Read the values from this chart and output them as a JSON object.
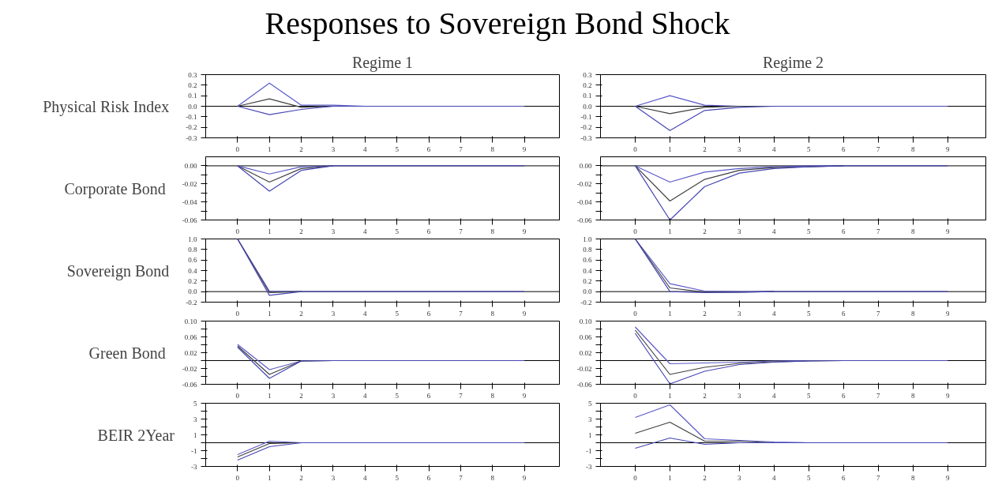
{
  "chart_data": [
    {
      "type": "line",
      "title": "Responses to Sovereign Bond Shock",
      "subtitle": "Regime 1",
      "ylabel": "Physical Risk Index",
      "x": [
        0,
        1,
        2,
        3,
        4,
        5,
        6,
        7,
        8,
        9
      ],
      "xlim": [
        -1,
        10.1
      ],
      "xticks": [
        0,
        1,
        2,
        3,
        4,
        5,
        6,
        7,
        8,
        9
      ],
      "ylim": [
        -0.3,
        0.3
      ],
      "yticks": [
        {
          "value": 0.3,
          "label": "0.3"
        },
        {
          "value": 0.2,
          "label": "0.2"
        },
        {
          "value": 0.1,
          "label": "0.1"
        },
        {
          "value": 0,
          "label": "0.0"
        },
        {
          "value": -0.1,
          "label": "-0.1"
        },
        {
          "value": -0.2,
          "label": "-0.2"
        },
        {
          "value": -0.3,
          "label": "-0.3"
        }
      ],
      "ref_lines": [
        {
          "axis": "y",
          "value": 0,
          "color": "#000000"
        }
      ],
      "series": [
        {
          "color": "#5a5ac8",
          "values": [
            0,
            0.22,
            0.01,
            0.01,
            0,
            null,
            null,
            null,
            null,
            null
          ]
        },
        {
          "color": "#404040",
          "values": [
            0,
            0.07,
            -0.01,
            0,
            null,
            null,
            null,
            null,
            null,
            null
          ]
        },
        {
          "color": "#4646b4",
          "values": [
            0,
            -0.08,
            -0.03,
            0,
            0,
            0,
            0,
            0,
            0,
            0
          ]
        }
      ]
    },
    {
      "type": "line",
      "subtitle": "Regime 2",
      "x": [
        0,
        1,
        2,
        3,
        4,
        5,
        6,
        7,
        8,
        9
      ],
      "xlim": [
        -1,
        10.1
      ],
      "xticks": [
        0,
        1,
        2,
        3,
        4,
        5,
        6,
        7,
        8,
        9
      ],
      "ylim": [
        -0.3,
        0.3
      ],
      "yticks": [
        {
          "value": 0.3,
          "label": "0.3"
        },
        {
          "value": 0.2,
          "label": "0.2"
        },
        {
          "value": 0.1,
          "label": "0.1"
        },
        {
          "value": 0,
          "label": "0.0"
        },
        {
          "value": -0.1,
          "label": "-0.1"
        },
        {
          "value": -0.2,
          "label": "-0.2"
        },
        {
          "value": -0.3,
          "label": "-0.3"
        }
      ],
      "ref_lines": [
        {
          "axis": "y",
          "value": 0,
          "color": "#000000"
        }
      ],
      "series": [
        {
          "color": "#5a5ac8",
          "values": [
            0,
            0.1,
            0.01,
            0,
            0,
            null,
            null,
            null,
            null,
            null
          ]
        },
        {
          "color": "#404040",
          "values": [
            0,
            -0.07,
            -0.01,
            0,
            0,
            null,
            null,
            null,
            null,
            null
          ]
        },
        {
          "color": "#4646b4",
          "values": [
            0,
            -0.23,
            -0.04,
            -0.01,
            0,
            0,
            0,
            0,
            0,
            0
          ]
        }
      ]
    },
    {
      "type": "line",
      "ylabel": "Corporate Bond",
      "x": [
        0,
        1,
        2,
        3,
        4,
        5,
        6,
        7,
        8,
        9
      ],
      "xlim": [
        -1,
        10.1
      ],
      "xticks": [
        0,
        1,
        2,
        3,
        4,
        5,
        6,
        7,
        8,
        9
      ],
      "ylim": [
        -0.06,
        0.01
      ],
      "yticks": [
        {
          "value": 0,
          "label": "0.00"
        },
        {
          "value": -0.01,
          "label": null
        },
        {
          "value": -0.02,
          "label": "-0.02"
        },
        {
          "value": -0.03,
          "label": null
        },
        {
          "value": -0.04,
          "label": "-0.04"
        },
        {
          "value": -0.05,
          "label": null
        },
        {
          "value": -0.06,
          "label": "-0.06"
        }
      ],
      "ref_lines": [
        {
          "axis": "y",
          "value": 0,
          "color": "#000000"
        }
      ],
      "series": [
        {
          "color": "#5a5ac8",
          "values": [
            0,
            -0.009,
            -0.001,
            0,
            null,
            null,
            null,
            null,
            null,
            null
          ]
        },
        {
          "color": "#404040",
          "values": [
            0,
            -0.018,
            -0.003,
            0,
            null,
            null,
            null,
            null,
            null,
            null
          ]
        },
        {
          "color": "#4646b4",
          "values": [
            0,
            -0.028,
            -0.005,
            0,
            0,
            0,
            0,
            0,
            0,
            0
          ]
        }
      ]
    },
    {
      "type": "line",
      "x": [
        0,
        1,
        2,
        3,
        4,
        5,
        6,
        7,
        8,
        9
      ],
      "xlim": [
        -1,
        10.1
      ],
      "xticks": [
        0,
        1,
        2,
        3,
        4,
        5,
        6,
        7,
        8,
        9
      ],
      "ylim": [
        -0.06,
        0.01
      ],
      "yticks": [
        {
          "value": 0,
          "label": "0.00"
        },
        {
          "value": -0.01,
          "label": null
        },
        {
          "value": -0.02,
          "label": "-0.02"
        },
        {
          "value": -0.03,
          "label": null
        },
        {
          "value": -0.04,
          "label": "-0.04"
        },
        {
          "value": -0.05,
          "label": null
        },
        {
          "value": -0.06,
          "label": "-0.06"
        }
      ],
      "ref_lines": [
        {
          "axis": "y",
          "value": 0,
          "color": "#000000"
        }
      ],
      "series": [
        {
          "color": "#5a5ac8",
          "values": [
            0,
            -0.018,
            -0.007,
            -0.003,
            -0.001,
            0,
            0,
            null,
            null,
            null
          ]
        },
        {
          "color": "#404040",
          "values": [
            0,
            -0.039,
            -0.015,
            -0.005,
            -0.002,
            -0.001,
            0,
            null,
            null,
            null
          ]
        },
        {
          "color": "#4646b4",
          "values": [
            0,
            -0.06,
            -0.023,
            -0.008,
            -0.003,
            -0.001,
            0,
            0,
            0,
            0
          ]
        }
      ]
    },
    {
      "type": "line",
      "ylabel": "Sovereign Bond",
      "x": [
        0,
        1,
        2,
        3,
        4,
        5,
        6,
        7,
        8,
        9
      ],
      "xlim": [
        -1,
        10.1
      ],
      "xticks": [
        0,
        1,
        2,
        3,
        4,
        5,
        6,
        7,
        8,
        9
      ],
      "ylim": [
        -0.2,
        1.0
      ],
      "yticks": [
        {
          "value": 1.0,
          "label": "1.0"
        },
        {
          "value": 0.8,
          "label": "0.8"
        },
        {
          "value": 0.6,
          "label": "0.6"
        },
        {
          "value": 0.4,
          "label": "0.4"
        },
        {
          "value": 0.2,
          "label": "0.2"
        },
        {
          "value": 0,
          "label": "0.0"
        },
        {
          "value": -0.2,
          "label": "-0.2"
        }
      ],
      "ref_lines": [
        {
          "axis": "y",
          "value": 0,
          "color": "#000000"
        }
      ],
      "series": [
        {
          "color": "#5a5ac8",
          "values": [
            1.0,
            0.01,
            0,
            null,
            null,
            null,
            null,
            null,
            null,
            null
          ]
        },
        {
          "color": "#404040",
          "values": [
            1.0,
            -0.02,
            0,
            null,
            null,
            null,
            null,
            null,
            null,
            null
          ]
        },
        {
          "color": "#4646b4",
          "values": [
            1.0,
            -0.07,
            0,
            0,
            0,
            0,
            0,
            0,
            0,
            0
          ]
        }
      ]
    },
    {
      "type": "line",
      "x": [
        0,
        1,
        2,
        3,
        4,
        5,
        6,
        7,
        8,
        9
      ],
      "xlim": [
        -1,
        10.1
      ],
      "xticks": [
        0,
        1,
        2,
        3,
        4,
        5,
        6,
        7,
        8,
        9
      ],
      "ylim": [
        -0.2,
        1.0
      ],
      "yticks": [
        {
          "value": 1.0,
          "label": "1.0"
        },
        {
          "value": 0.8,
          "label": "0.8"
        },
        {
          "value": 0.6,
          "label": "0.6"
        },
        {
          "value": 0.4,
          "label": "0.4"
        },
        {
          "value": 0.2,
          "label": "0.2"
        },
        {
          "value": 0,
          "label": "0.0"
        },
        {
          "value": -0.2,
          "label": "-0.2"
        }
      ],
      "ref_lines": [
        {
          "axis": "y",
          "value": 0,
          "color": "#000000"
        }
      ],
      "series": [
        {
          "color": "#5a5ac8",
          "values": [
            1.0,
            0.15,
            0.01,
            0,
            0,
            null,
            null,
            null,
            null,
            null
          ]
        },
        {
          "color": "#404040",
          "values": [
            1.0,
            0.07,
            -0.01,
            -0.01,
            0,
            null,
            null,
            null,
            null,
            null
          ]
        },
        {
          "color": "#4646b4",
          "values": [
            1.0,
            0,
            -0.02,
            -0.01,
            0,
            0,
            0,
            0,
            0,
            0
          ]
        }
      ]
    },
    {
      "type": "line",
      "ylabel": "Green Bond",
      "x": [
        0,
        1,
        2,
        3,
        4,
        5,
        6,
        7,
        8,
        9
      ],
      "xlim": [
        -1,
        10.1
      ],
      "xticks": [
        0,
        1,
        2,
        3,
        4,
        5,
        6,
        7,
        8,
        9
      ],
      "ylim": [
        -0.06,
        0.1
      ],
      "yticks": [
        {
          "value": 0.1,
          "label": "0.10"
        },
        {
          "value": 0.08,
          "label": null
        },
        {
          "value": 0.06,
          "label": "0.06"
        },
        {
          "value": 0.04,
          "label": null
        },
        {
          "value": 0.02,
          "label": "0.02"
        },
        {
          "value": 0,
          "label": null
        },
        {
          "value": -0.02,
          "label": "-0.02"
        },
        {
          "value": -0.04,
          "label": null
        },
        {
          "value": -0.06,
          "label": "-0.06"
        }
      ],
      "ref_lines": [
        {
          "axis": "y",
          "value": 0,
          "color": "#000000"
        }
      ],
      "series": [
        {
          "color": "#5a5ac8",
          "values": [
            0.041,
            -0.023,
            -0.001,
            0,
            null,
            null,
            null,
            null,
            null,
            null
          ]
        },
        {
          "color": "#404040",
          "values": [
            0.037,
            -0.035,
            -0.001,
            0,
            null,
            null,
            null,
            null,
            null,
            null
          ]
        },
        {
          "color": "#4646b4",
          "values": [
            0.034,
            -0.045,
            -0.001,
            0,
            0,
            0,
            0,
            0,
            0,
            0
          ]
        }
      ]
    },
    {
      "type": "line",
      "x": [
        0,
        1,
        2,
        3,
        4,
        5,
        6,
        7,
        8,
        9
      ],
      "xlim": [
        -1,
        10.1
      ],
      "xticks": [
        0,
        1,
        2,
        3,
        4,
        5,
        6,
        7,
        8,
        9
      ],
      "ylim": [
        -0.06,
        0.1
      ],
      "yticks": [
        {
          "value": 0.1,
          "label": "0.10"
        },
        {
          "value": 0.08,
          "label": null
        },
        {
          "value": 0.06,
          "label": "0.06"
        },
        {
          "value": 0.04,
          "label": null
        },
        {
          "value": 0.02,
          "label": "0.02"
        },
        {
          "value": 0,
          "label": null
        },
        {
          "value": -0.02,
          "label": "-0.02"
        },
        {
          "value": -0.04,
          "label": null
        },
        {
          "value": -0.06,
          "label": "-0.06"
        }
      ],
      "ref_lines": [
        {
          "axis": "y",
          "value": 0,
          "color": "#000000"
        }
      ],
      "series": [
        {
          "color": "#5a5ac8",
          "values": [
            0.085,
            -0.008,
            -0.006,
            -0.004,
            -0.001,
            0,
            0,
            null,
            null,
            null
          ]
        },
        {
          "color": "#404040",
          "values": [
            0.077,
            -0.035,
            -0.017,
            -0.007,
            -0.003,
            -0.001,
            0,
            null,
            null,
            null
          ]
        },
        {
          "color": "#4646b4",
          "values": [
            0.069,
            -0.059,
            -0.027,
            -0.01,
            -0.004,
            -0.001,
            0,
            0,
            0,
            0
          ]
        }
      ]
    },
    {
      "type": "line",
      "ylabel": "BEIR 2Year",
      "x": [
        0,
        1,
        2,
        3,
        4,
        5,
        6,
        7,
        8,
        9
      ],
      "xlim": [
        -1,
        10.1
      ],
      "xticks": [
        0,
        1,
        2,
        3,
        4,
        5,
        6,
        7,
        8,
        9
      ],
      "ylim": [
        -3,
        5
      ],
      "yticks": [
        5,
        {
          "value": 4,
          "label": null
        },
        3,
        {
          "value": 2,
          "label": null
        },
        1,
        {
          "value": 0,
          "label": null
        },
        -1,
        {
          "value": -2,
          "label": null
        },
        -3
      ],
      "ref_lines": [
        {
          "axis": "y",
          "value": 0,
          "color": "#000000"
        }
      ],
      "series": [
        {
          "color": "#5a5ac8",
          "values": [
            -1.5,
            0.2,
            0,
            null,
            null,
            null,
            null,
            null,
            null,
            null
          ]
        },
        {
          "color": "#404040",
          "values": [
            -1.8,
            -0.1,
            0,
            null,
            null,
            null,
            null,
            null,
            null,
            null
          ]
        },
        {
          "color": "#4646b4",
          "values": [
            -2.2,
            -0.5,
            0,
            0,
            0,
            0,
            0,
            0,
            0,
            0
          ]
        }
      ]
    },
    {
      "type": "line",
      "x": [
        0,
        1,
        2,
        3,
        4,
        5,
        6,
        7,
        8,
        9
      ],
      "xlim": [
        -1,
        10.1
      ],
      "xticks": [
        0,
        1,
        2,
        3,
        4,
        5,
        6,
        7,
        8,
        9
      ],
      "ylim": [
        -3,
        5
      ],
      "yticks": [
        5,
        {
          "value": 4,
          "label": null
        },
        3,
        {
          "value": 2,
          "label": null
        },
        1,
        {
          "value": 0,
          "label": null
        },
        -1,
        {
          "value": -2,
          "label": null
        },
        -3
      ],
      "ref_lines": [
        {
          "axis": "y",
          "value": 0,
          "color": "#000000"
        }
      ],
      "series": [
        {
          "color": "#5a5ac8",
          "values": [
            3.2,
            4.8,
            0.5,
            0.3,
            0.1,
            0,
            null,
            null,
            null,
            null
          ]
        },
        {
          "color": "#404040",
          "values": [
            1.2,
            2.6,
            0.2,
            0.2,
            0,
            null,
            null,
            null,
            null,
            null
          ]
        },
        {
          "color": "#4646b4",
          "values": [
            -0.7,
            0.6,
            -0.2,
            0,
            0,
            0,
            0,
            0,
            0,
            0
          ]
        }
      ]
    }
  ]
}
